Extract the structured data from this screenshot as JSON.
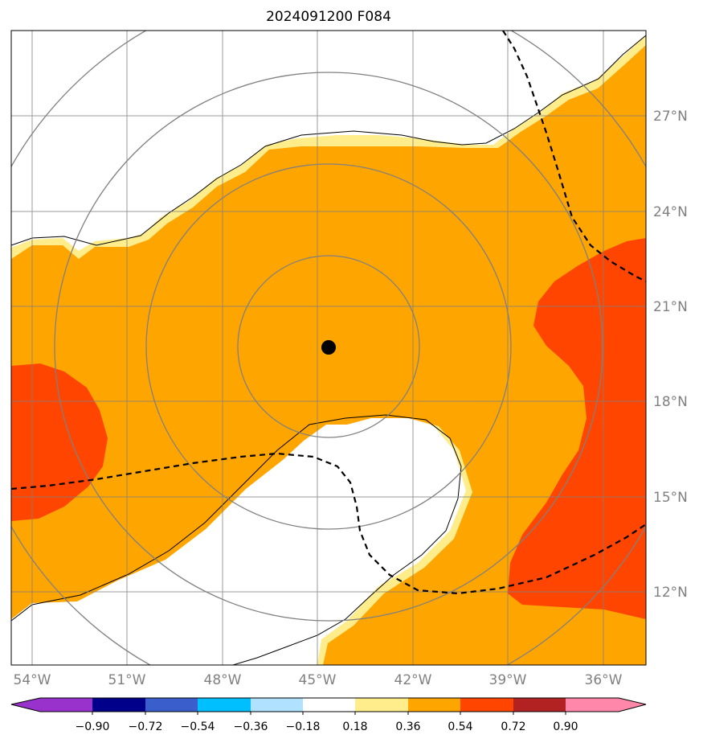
{
  "title": "2024091200 F084",
  "lon_labels": [
    "54°W",
    "51°W",
    "48°W",
    "45°W",
    "42°W",
    "39°W",
    "36°W"
  ],
  "lat_labels": [
    "27°N",
    "24°N",
    "21°N",
    "18°N",
    "15°N",
    "12°N"
  ],
  "colorbar": {
    "ticks": [
      "−0.90",
      "−0.72",
      "−0.54",
      "−0.36",
      "−0.18",
      "0.18",
      "0.36",
      "0.54",
      "0.72",
      "0.90"
    ],
    "colors": [
      "#9932cc",
      "#00008b",
      "#3a5fcd",
      "#00bfff",
      "#b0e2ff",
      "#ffffff",
      "#ffec8b",
      "#ffa500",
      "#ff4500",
      "#b22222",
      "#ff88aa"
    ]
  },
  "colors": {
    "orange": "#ffa500",
    "red": "#ff4500",
    "yellow": "#ffec8b",
    "grid": "#808080",
    "track": "#000000"
  },
  "center_marker": "storm-center-dot"
}
